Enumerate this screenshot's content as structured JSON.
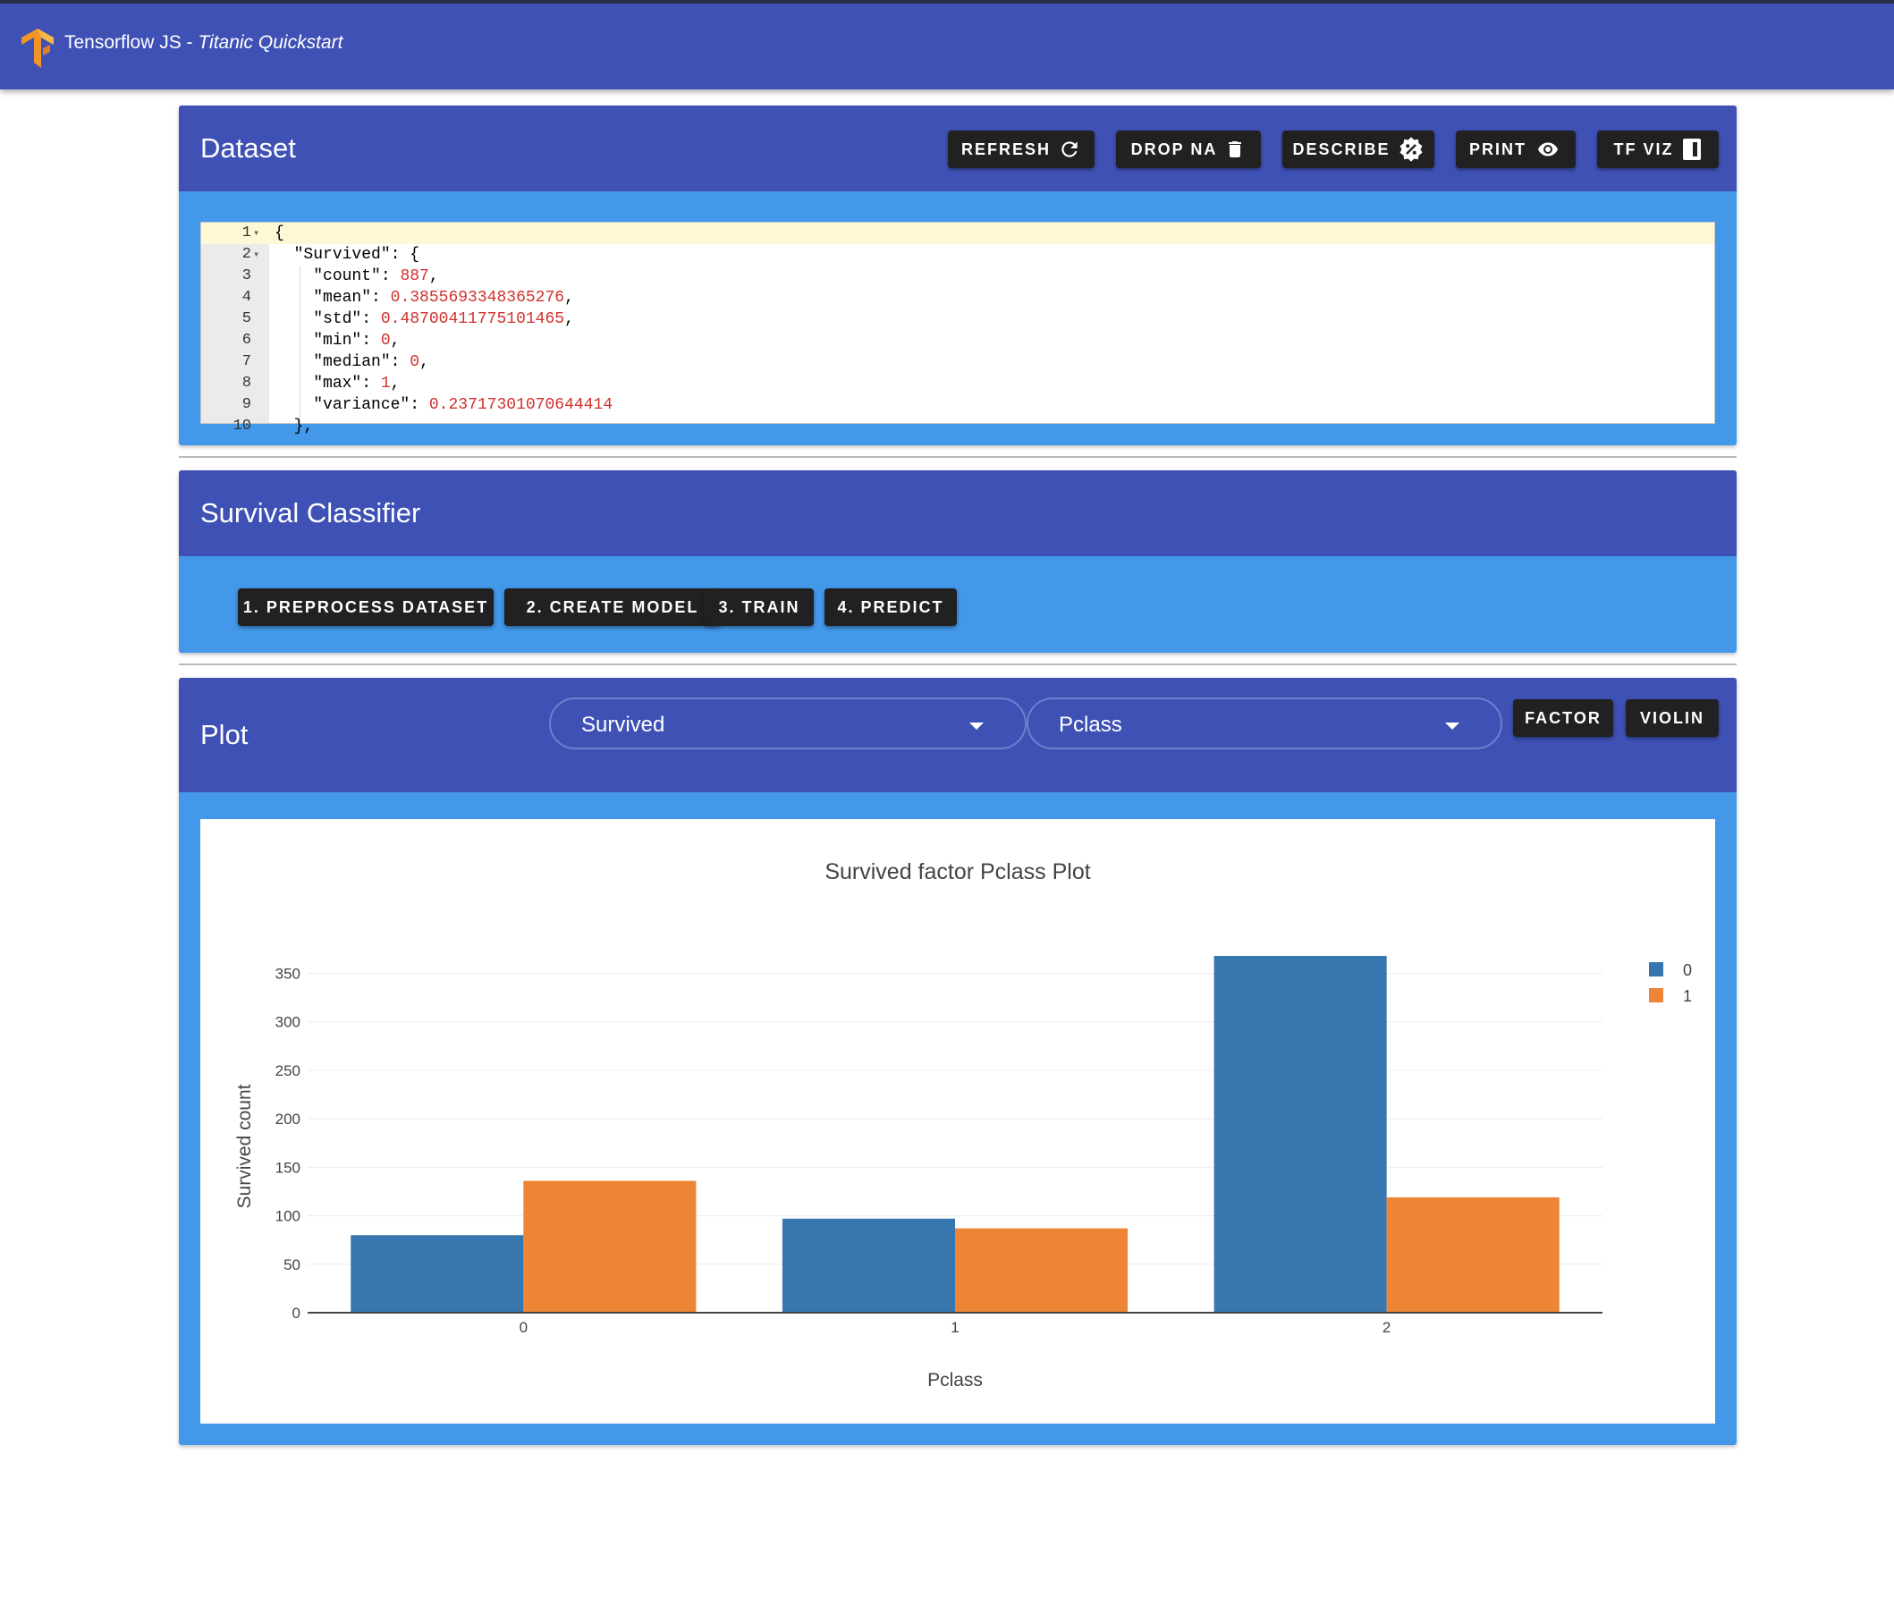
{
  "app": {
    "title_main": "Tensorflow JS - ",
    "title_sub": "Titanic Quickstart",
    "logo_icon": "tensorflow-logo"
  },
  "dataset": {
    "title": "Dataset",
    "buttons": {
      "refresh": "REFRESH",
      "drop_na": "DROP NA",
      "describe": "DESCRIBE",
      "print": "PRINT",
      "tf_viz": "TF VIZ"
    },
    "editor": {
      "lines": [
        {
          "n": "1",
          "fold": true
        },
        {
          "n": "2",
          "fold": true
        },
        {
          "n": "3"
        },
        {
          "n": "4"
        },
        {
          "n": "5"
        },
        {
          "n": "6"
        },
        {
          "n": "7"
        },
        {
          "n": "8"
        },
        {
          "n": "9"
        },
        {
          "n": "10"
        }
      ],
      "open_brace": "{",
      "survived_key": "\"Survived\"",
      "fields": [
        {
          "key": "\"count\"",
          "value": "887",
          "comma": ","
        },
        {
          "key": "\"mean\"",
          "value": "0.3855693348365276",
          "comma": ","
        },
        {
          "key": "\"std\"",
          "value": "0.48700411775101465",
          "comma": ","
        },
        {
          "key": "\"min\"",
          "value": "0",
          "comma": ","
        },
        {
          "key": "\"median\"",
          "value": "0",
          "comma": ","
        },
        {
          "key": "\"max\"",
          "value": "1",
          "comma": ","
        },
        {
          "key": "\"variance\"",
          "value": "0.23717301070644414",
          "comma": ""
        }
      ],
      "close_brace": "},"
    }
  },
  "classifier": {
    "title": "Survival Classifier",
    "buttons": {
      "preprocess": "1. PREPROCESS DATASET",
      "create_model": "2. CREATE MODEL",
      "train": "3. TRAIN",
      "predict": "4. PREDICT"
    }
  },
  "plot": {
    "title": "Plot",
    "select_x": "Survived",
    "select_y": "Pclass",
    "buttons": {
      "factor": "FACTOR",
      "violin": "VIOLIN"
    }
  },
  "chart_data": {
    "type": "bar",
    "title": "Survived factor Pclass Plot",
    "xlabel": "Pclass",
    "ylabel": "Survived count",
    "categories": [
      "0",
      "1",
      "2"
    ],
    "series": [
      {
        "name": "0",
        "values": [
          80,
          97,
          368
        ],
        "color": "#3776ae"
      },
      {
        "name": "1",
        "values": [
          136,
          87,
          119
        ],
        "color": "#ee8435"
      }
    ],
    "ylim": [
      0,
      380
    ],
    "yticks": [
      0,
      50,
      100,
      150,
      200,
      250,
      300,
      350
    ],
    "grid": true,
    "legend": "top-right"
  }
}
